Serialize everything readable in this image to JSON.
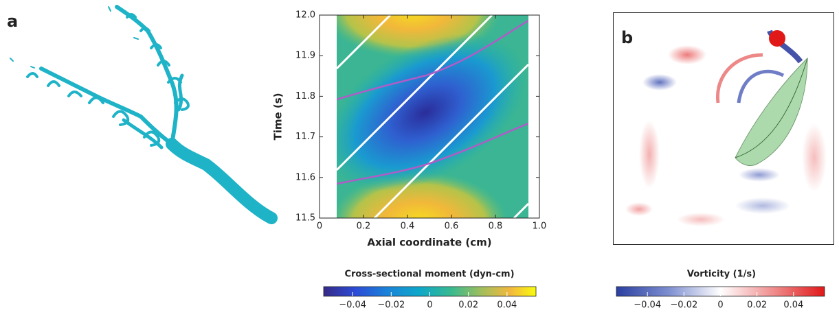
{
  "chart_data": [
    {
      "type": "heatmap",
      "panel_label": "a",
      "xlabel": "Axial coordinate (cm)",
      "ylabel": "Time (s)",
      "xlim": [
        0,
        1
      ],
      "xticks": [
        0,
        0.2,
        0.4,
        0.6,
        0.8,
        {
          "value": 1,
          "label": "1.0"
        }
      ],
      "ylim": [
        11.5,
        12
      ],
      "yticks": [
        11.5,
        11.6,
        11.7,
        11.8,
        11.9,
        {
          "value": 12,
          "label": "12.0"
        }
      ],
      "colorbar": {
        "label": "Cross-sectional moment (dyn-cm)",
        "lim": [
          -0.055,
          0.055
        ],
        "ticks": [
          {
            "value": -0.04,
            "label": "−0.04"
          },
          {
            "value": -0.02,
            "label": "−0.02"
          },
          0,
          0.02,
          0.04
        ]
      }
    },
    {
      "type": "image",
      "panel_label": "b",
      "colorbar": {
        "label": "Vorticity (1/s)",
        "lim": [
          -0.057,
          0.057
        ],
        "ticks": [
          {
            "value": -0.04,
            "label": "−0.04"
          },
          {
            "value": -0.02,
            "label": "−0.02"
          },
          0,
          0.02,
          0.04
        ]
      }
    }
  ]
}
